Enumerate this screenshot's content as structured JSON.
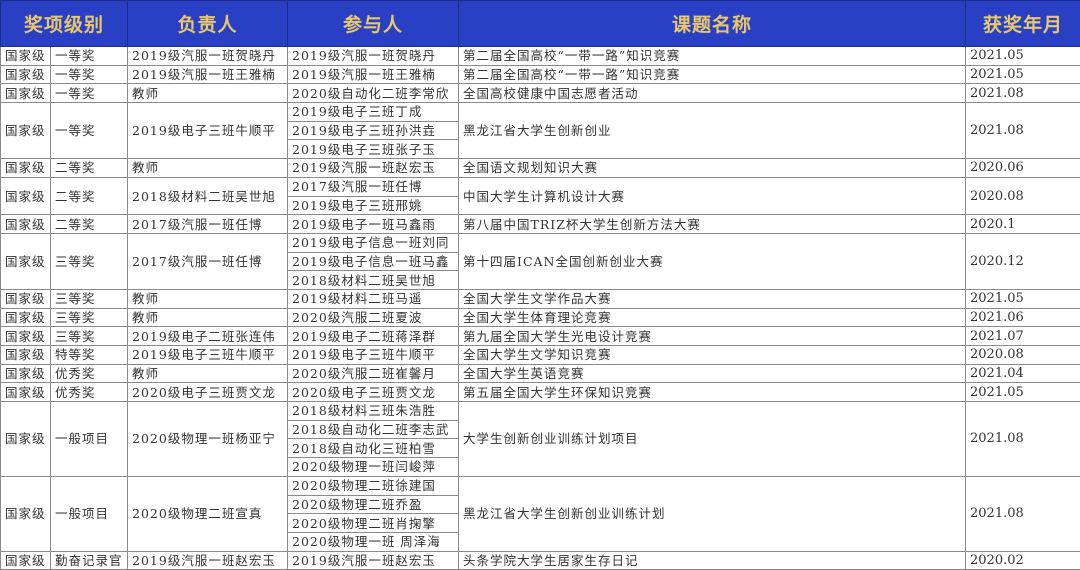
{
  "colors": {
    "header_bg": "#2a40c4",
    "header_text": "#e8c86a",
    "grid": "#8a8a8a"
  },
  "headers": [
    "奖项级别",
    "负责人",
    "参与人",
    "课题名称",
    "获奖年月"
  ],
  "rows": [
    {
      "level": "国家级",
      "award": "一等奖",
      "leader": "2019级汽服一班贺晓丹",
      "participants": [
        "2019级汽服一班贺晓丹"
      ],
      "title": "第二届全国高校“一带一路”知识竞赛",
      "date": "2021.05"
    },
    {
      "level": "国家级",
      "award": "一等奖",
      "leader": "2019级汽服一班王雅楠",
      "participants": [
        "2019级汽服一班王雅楠"
      ],
      "title": "第二届全国高校“一带一路”知识竞赛",
      "date": "2021.05"
    },
    {
      "level": "国家级",
      "award": "一等奖",
      "leader": "教师",
      "participants": [
        "2020级自动化二班李常欣"
      ],
      "title": "全国高校健康中国志愿者活动",
      "date": "2021.08"
    },
    {
      "level": "国家级",
      "award": "一等奖",
      "leader": "2019级电子三班牛顺平",
      "participants": [
        "2019级电子三班丁成",
        "2019级电子三班孙洪垚",
        "2019级电子三班张子玉"
      ],
      "title": "黑龙江省大学生创新创业",
      "date": "2021.08"
    },
    {
      "level": "国家级",
      "award": "二等奖",
      "leader": "教师",
      "participants": [
        "2019级汽服一班赵宏玉"
      ],
      "title": "全国语文规划知识大赛",
      "date": "2020.06"
    },
    {
      "level": "国家级",
      "award": "二等奖",
      "leader": "2018级材料二班吴世旭",
      "participants": [
        "2017级汽服一班任博",
        "2019级电子三班邢姚"
      ],
      "title": "中国大学生计算机设计大赛",
      "date": "2020.08"
    },
    {
      "level": "国家级",
      "award": "二等奖",
      "leader": "2017级汽服一班任博",
      "participants": [
        "2019级电子一班马鑫雨"
      ],
      "title": "第八届中国TRIZ杯大学生创新方法大赛",
      "date": "2020.1"
    },
    {
      "level": "国家级",
      "award": "三等奖",
      "leader": "2017级汽服一班任博",
      "participants": [
        "2019级电子信息一班刘同",
        "2019级电子信息一班马鑫",
        "2018级材料二班吴世旭"
      ],
      "title": "第十四届ICAN全国创新创业大赛",
      "date": "2020.12"
    },
    {
      "level": "国家级",
      "award": "三等奖",
      "leader": "教师",
      "participants": [
        "2019级材料二班马遥"
      ],
      "title": "全国大学生文学作品大赛",
      "date": "2021.05"
    },
    {
      "level": "国家级",
      "award": "三等奖",
      "leader": "教师",
      "participants": [
        "2020级汽服二班夏波"
      ],
      "title": "全国大学生体育理论竞赛",
      "date": "2021.06"
    },
    {
      "level": "国家级",
      "award": "三等奖",
      "leader": "2019级电子二班张连伟",
      "participants": [
        "2019级电子二班蒋泽群"
      ],
      "title": "第九届全国大学生光电设计竞赛",
      "date": "2021.07"
    },
    {
      "level": "国家级",
      "award": "特等奖",
      "leader": "2019级电子三班牛顺平",
      "participants": [
        "2019级电子三班牛顺平"
      ],
      "title": "全国大学生文学知识竞赛",
      "date": "2020.08"
    },
    {
      "level": "国家级",
      "award": "优秀奖",
      "leader": "教师",
      "participants": [
        "2020级汽服二班崔馨月"
      ],
      "title": "全国大学生英语竞赛",
      "date": "2021.04"
    },
    {
      "level": "国家级",
      "award": "优秀奖",
      "leader": "2020级电子三班贾文龙",
      "participants": [
        "2020级电子三班贾文龙"
      ],
      "title": "第五届全国大学生环保知识竞赛",
      "date": "2021.05"
    },
    {
      "level": "国家级",
      "award": "一般项目",
      "leader": "2020级物理一班杨亚宁",
      "participants": [
        "2018级材料三班朱浩胜",
        "2018级自动化二班李志武",
        "2018级自动化三班柏雪",
        "2020级物理一班闫峻萍"
      ],
      "title": "大学生创新创业训练计划项目",
      "date": "2021.08"
    },
    {
      "level": "国家级",
      "award": "一般项目",
      "leader": "2020级物理二班宣真",
      "participants": [
        "2020级物理二班徐建国",
        "2020级物理二班乔盈",
        "2020级物理二班肖掬擎",
        "2020级物理一班 周泽海"
      ],
      "title": "黑龙江省大学生创新创业训练计划",
      "date": "2021.08"
    },
    {
      "level": "国家级",
      "award": "勤奋记录官",
      "leader": "2019级汽服一班赵宏玉",
      "participants": [
        "2019级汽服一班赵宏玉"
      ],
      "title": "头条学院大学生居家生存日记",
      "date": "2020.02"
    }
  ]
}
